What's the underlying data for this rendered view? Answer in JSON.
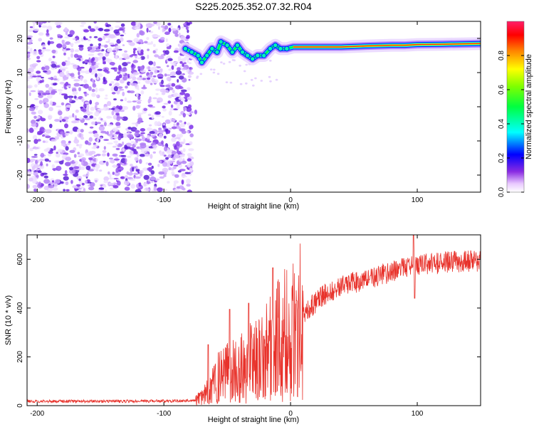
{
  "title": "S225.2025.352.07.32.R04",
  "chart_data": [
    {
      "type": "heatmap",
      "name": "spectrogram",
      "xlabel": "Height of straight line (km)",
      "ylabel": "Frequency (Hz)",
      "xlim": [
        -208,
        150
      ],
      "ylim": [
        -25,
        25
      ],
      "xticks": [
        -200,
        -100,
        0,
        100
      ],
      "yticks": [
        -20,
        -10,
        0,
        10,
        20
      ],
      "noise_region_x": [
        -208,
        -78
      ],
      "ridge": [
        {
          "x": -83,
          "y": 17
        },
        {
          "x": -78,
          "y": 16
        },
        {
          "x": -73,
          "y": 15
        },
        {
          "x": -70,
          "y": 13
        },
        {
          "x": -66,
          "y": 15
        },
        {
          "x": -62,
          "y": 17
        },
        {
          "x": -58,
          "y": 16
        },
        {
          "x": -55,
          "y": 19
        },
        {
          "x": -50,
          "y": 18
        },
        {
          "x": -46,
          "y": 16
        },
        {
          "x": -42,
          "y": 18
        },
        {
          "x": -38,
          "y": 16
        },
        {
          "x": -34,
          "y": 15
        },
        {
          "x": -30,
          "y": 14
        },
        {
          "x": -26,
          "y": 15
        },
        {
          "x": -21,
          "y": 15
        },
        {
          "x": -16,
          "y": 17
        },
        {
          "x": -12,
          "y": 18
        },
        {
          "x": -8,
          "y": 17
        },
        {
          "x": -3,
          "y": 17
        },
        {
          "x": 2,
          "y": 17.5
        },
        {
          "x": 10,
          "y": 17.5
        },
        {
          "x": 20,
          "y": 17.5
        },
        {
          "x": 40,
          "y": 17.5
        },
        {
          "x": 60,
          "y": 17.8
        },
        {
          "x": 80,
          "y": 18
        },
        {
          "x": 90,
          "y": 18
        },
        {
          "x": 100,
          "y": 18.2
        },
        {
          "x": 120,
          "y": 18.3
        },
        {
          "x": 150,
          "y": 18.5
        }
      ],
      "colorbar": {
        "label": "Normalized spectral amplitude",
        "range": [
          0,
          1
        ],
        "ticks": [
          0.0,
          0.2,
          0.4,
          0.6,
          0.8
        ]
      }
    },
    {
      "type": "line",
      "name": "snr",
      "xlabel": "Height of straight line (km)",
      "ylabel": "SNR (10 * v/v)",
      "xlim": [
        -208,
        150
      ],
      "ylim": [
        0,
        700
      ],
      "xticks": [
        -200,
        -100,
        0,
        100
      ],
      "yticks": [
        0,
        200,
        400,
        600
      ],
      "color": "#e8322b",
      "trend": [
        {
          "x": -208,
          "y": 18
        },
        {
          "x": -120,
          "y": 18
        },
        {
          "x": -75,
          "y": 20
        },
        {
          "x": -65,
          "y": 60
        },
        {
          "x": -55,
          "y": 130
        },
        {
          "x": -45,
          "y": 150
        },
        {
          "x": -35,
          "y": 170
        },
        {
          "x": -25,
          "y": 200
        },
        {
          "x": -15,
          "y": 250
        },
        {
          "x": -5,
          "y": 300
        },
        {
          "x": 5,
          "y": 340
        },
        {
          "x": 15,
          "y": 400
        },
        {
          "x": 25,
          "y": 450
        },
        {
          "x": 40,
          "y": 490
        },
        {
          "x": 60,
          "y": 520
        },
        {
          "x": 80,
          "y": 550
        },
        {
          "x": 95,
          "y": 570
        },
        {
          "x": 110,
          "y": 585
        },
        {
          "x": 130,
          "y": 590
        },
        {
          "x": 150,
          "y": 595
        }
      ],
      "peaks": [
        {
          "x": -65,
          "y": 250
        },
        {
          "x": -48,
          "y": 395
        },
        {
          "x": -33,
          "y": 420
        },
        {
          "x": -14,
          "y": 565
        },
        {
          "x": 5,
          "y": 430
        },
        {
          "x": 97,
          "y": 700
        }
      ],
      "dips": [
        {
          "x": 98,
          "y": 440
        }
      ]
    }
  ]
}
